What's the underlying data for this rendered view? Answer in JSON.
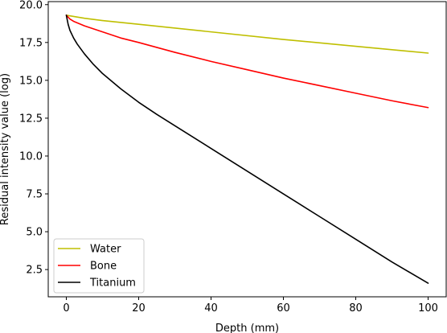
{
  "chart_data": {
    "type": "line",
    "xlabel": "Depth (mm)",
    "ylabel": "Residual intensity value (log)",
    "xlim": [
      -5,
      105
    ],
    "ylim": [
      0.7,
      20.2
    ],
    "xticks": [
      0,
      20,
      40,
      60,
      80,
      100
    ],
    "xtick_labels": [
      "0",
      "20",
      "40",
      "60",
      "80",
      "100"
    ],
    "yticks": [
      2.5,
      5.0,
      7.5,
      10.0,
      12.5,
      15.0,
      17.5,
      20.0
    ],
    "ytick_labels": [
      "2.5",
      "5.0",
      "7.5",
      "10.0",
      "12.5",
      "15.0",
      "17.5",
      "20.0"
    ],
    "grid": false,
    "legend_position": "lower-left",
    "series": [
      {
        "name": "Water",
        "color": "#bfbf00",
        "x": [
          0,
          5,
          10,
          20,
          40,
          60,
          80,
          100
        ],
        "y": [
          19.3,
          19.1,
          18.95,
          18.7,
          18.2,
          17.7,
          17.25,
          16.8
        ]
      },
      {
        "name": "Bone",
        "color": "#ff0000",
        "x": [
          0,
          1,
          2,
          5,
          10,
          15,
          20,
          30,
          40,
          50,
          60,
          70,
          80,
          90,
          100
        ],
        "y": [
          19.3,
          19.05,
          18.9,
          18.6,
          18.2,
          17.8,
          17.5,
          16.85,
          16.25,
          15.7,
          15.15,
          14.65,
          14.15,
          13.65,
          13.2
        ]
      },
      {
        "name": "Titanium",
        "color": "#000000",
        "x": [
          0,
          0.5,
          1,
          2,
          3,
          5,
          7.5,
          10,
          15,
          20,
          25,
          30,
          40,
          50,
          60,
          70,
          80,
          90,
          100
        ],
        "y": [
          19.3,
          18.7,
          18.3,
          17.8,
          17.4,
          16.75,
          16.05,
          15.45,
          14.45,
          13.55,
          12.75,
          12.0,
          10.5,
          9.0,
          7.5,
          6.0,
          4.5,
          3.0,
          1.6
        ]
      }
    ]
  }
}
